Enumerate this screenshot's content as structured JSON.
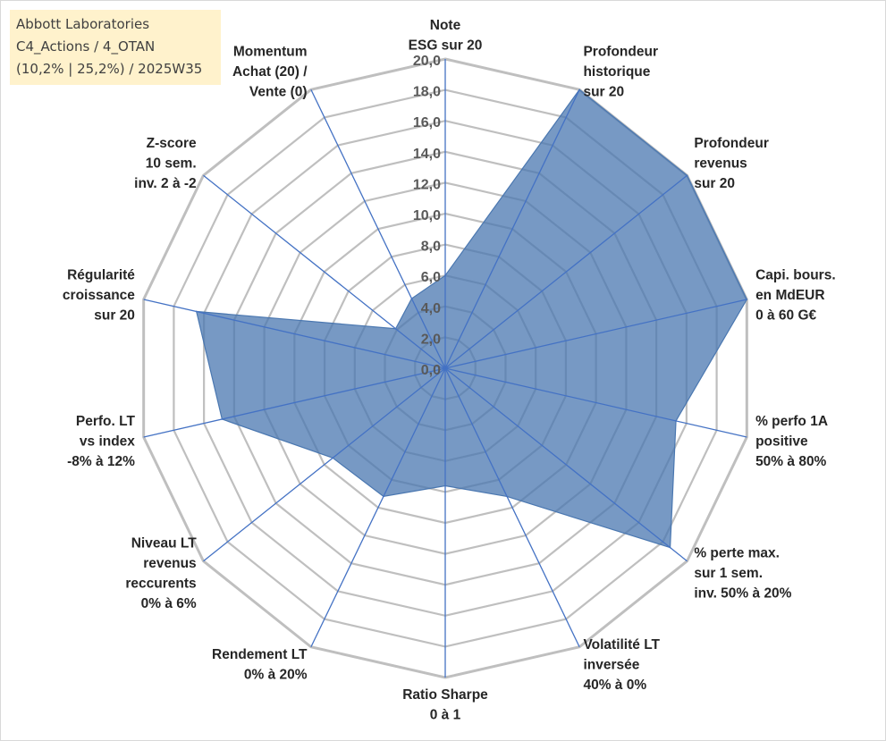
{
  "title_lines": [
    "Abbott Laboratories",
    "C4_Actions / 4_OTAN",
    "(10,2% | 25,2%) / 2025W35"
  ],
  "chart_data": {
    "type": "radar",
    "title": "Abbott Laboratories C4_Actions / 4_OTAN (10,2% | 25,2%) / 2025W35",
    "rlim": [
      0,
      20
    ],
    "ticks": [
      "0,0",
      "2,0",
      "4,0",
      "6,0",
      "8,0",
      "10,0",
      "12,0",
      "14,0",
      "16,0",
      "18,0",
      "20,0"
    ],
    "grid": true,
    "legend": "none",
    "axes": [
      "Note ESG sur 20",
      "Profondeur historique sur 20",
      "Profondeur revenus sur 20",
      "Capi. bours. en MdEUR 0 à 60 G€",
      "% perfo 1A positive 50% à 80%",
      "% perte max. sur 1 sem. inv. 50% à 20%",
      "Volatilité LT inversée 40% à 0%",
      "Ratio Sharpe 0 à 1",
      "Rendement LT 0% à 20%",
      "Niveau LT revenus reccurents 0% à 6%",
      "Perfo. LT vs index -8% à 12%",
      "Régularité croissance sur 20",
      "Z-score 10 sem. inv. 2 à -2",
      "Momentum Achat (20) / Vente (0)"
    ],
    "axis_label_lines": [
      [
        "Note",
        "ESG sur 20"
      ],
      [
        "Profondeur",
        "historique",
        "sur 20"
      ],
      [
        "Profondeur",
        "revenus",
        "sur 20"
      ],
      [
        "Capi. bours.",
        "en MdEUR",
        "0 à 60 G€"
      ],
      [
        "% perfo 1A",
        "positive",
        "50% à 80%"
      ],
      [
        "% perte max.",
        "sur 1 sem.",
        "inv. 50% à 20%"
      ],
      [
        "Volatilité LT",
        "inversée",
        "40% à 0%"
      ],
      [
        "Ratio Sharpe",
        "0 à 1"
      ],
      [
        "Rendement LT",
        "0% à 20%"
      ],
      [
        "Niveau LT",
        "revenus",
        "reccurents",
        "0% à 6%"
      ],
      [
        "Perfo. LT",
        "vs index",
        "-8% à 12%"
      ],
      [
        "Régularité",
        "croissance",
        "sur 20"
      ],
      [
        "Z-score",
        "10 sem.",
        "inv. 2 à -2"
      ],
      [
        "Momentum",
        "Achat (20) /",
        "Vente (0)"
      ]
    ],
    "series": [
      {
        "values": [
          6.0,
          20.0,
          20.0,
          20.0,
          15.3,
          18.6,
          9.2,
          7.6,
          9.2,
          9.3,
          14.8,
          16.5,
          4.1,
          5.0
        ],
        "color": "#4a77b0"
      }
    ],
    "colors": {
      "fill": "#4a77b0",
      "grid": "#bfbfbf",
      "axis": "#4472c4",
      "text": "#595959",
      "label": "#262626"
    }
  }
}
